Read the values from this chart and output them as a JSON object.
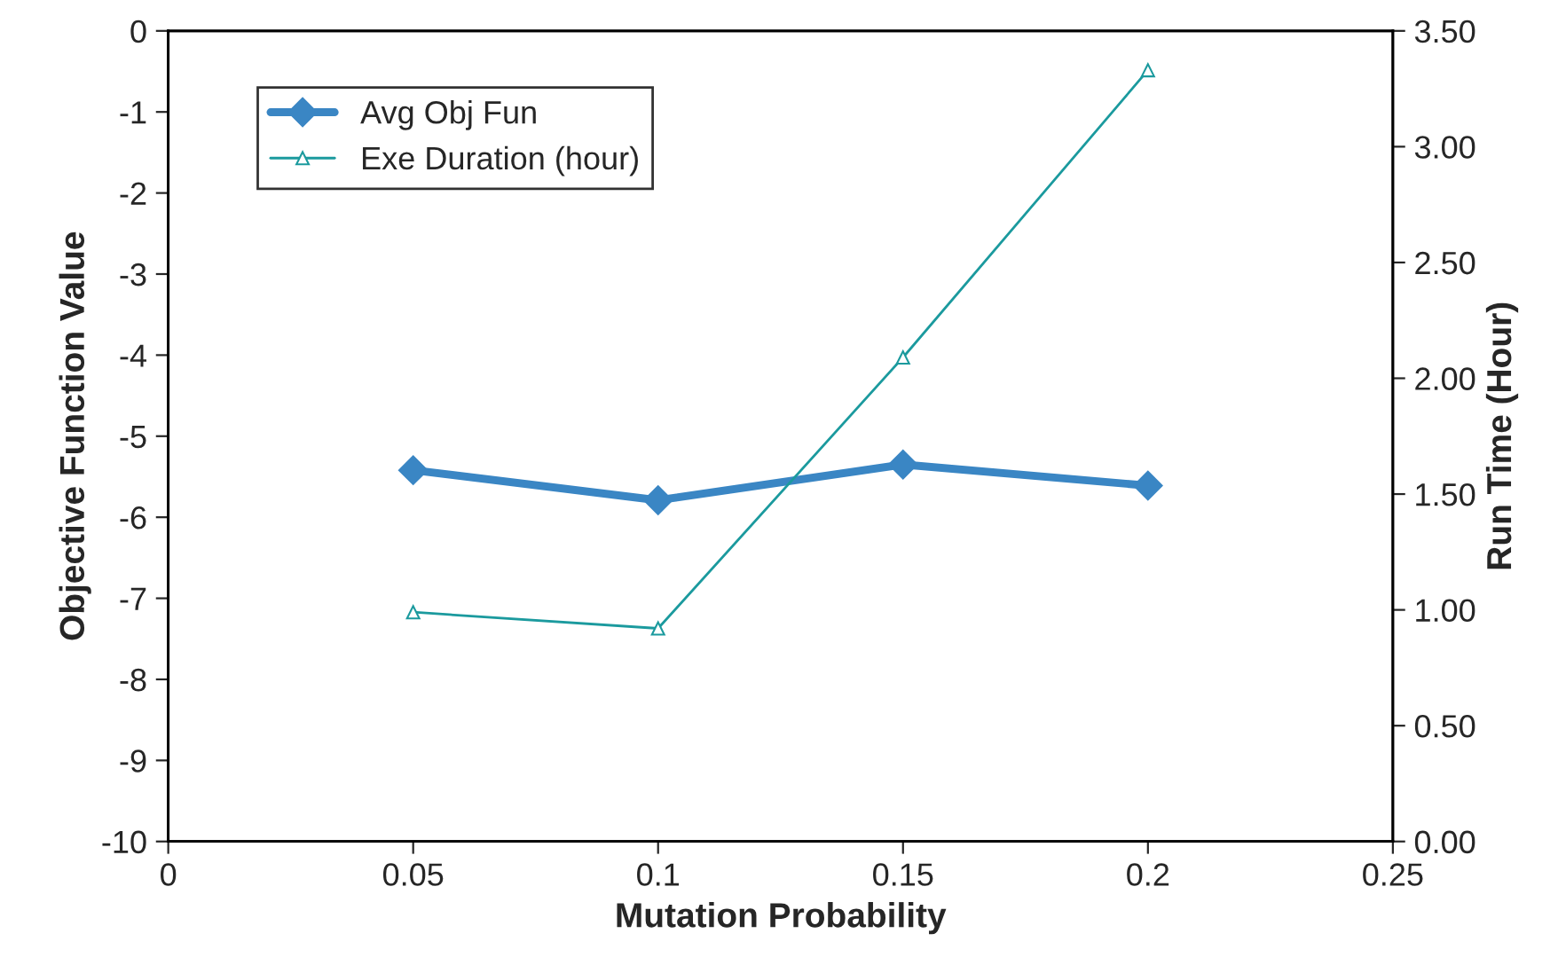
{
  "chart_data": {
    "type": "line",
    "xlabel": "Mutation Probability",
    "ylabel": "Objective Function Value",
    "y2label": "Run Time (Hour)",
    "x": [
      0.05,
      0.1,
      0.15,
      0.2
    ],
    "series": [
      {
        "name": "Avg Obj Fun",
        "color": "#3a86c4",
        "marker": "diamond",
        "values": [
          -5.42,
          -5.79,
          -5.35,
          -5.61
        ]
      },
      {
        "name": "Exe Duration (hour)",
        "color": "#1b9a9e",
        "marker": "triangle",
        "axis": "y2",
        "values": [
          0.99,
          0.92,
          2.09,
          3.33
        ]
      }
    ],
    "xlim": [
      0,
      0.25
    ],
    "xticks": [
      0,
      0.05,
      0.1,
      0.15,
      0.2,
      0.25
    ],
    "ylim": [
      -10,
      0
    ],
    "yticks": [
      -10,
      -9,
      -8,
      -7,
      -6,
      -5,
      -4,
      -3,
      -2,
      -1,
      0
    ],
    "y2lim": [
      0,
      3.5
    ],
    "y2ticks": [
      {
        "value": 0,
        "label": "0.00"
      },
      {
        "value": 0.5,
        "label": "0.50"
      },
      {
        "value": 1,
        "label": "1.00"
      },
      {
        "value": 1.5,
        "label": "1.50"
      },
      {
        "value": 2,
        "label": "2.00"
      },
      {
        "value": 2.5,
        "label": "2.50"
      },
      {
        "value": 3,
        "label": "3.00"
      },
      {
        "value": 3.5,
        "label": "3.50"
      }
    ],
    "grid": false,
    "legend": "top left"
  }
}
